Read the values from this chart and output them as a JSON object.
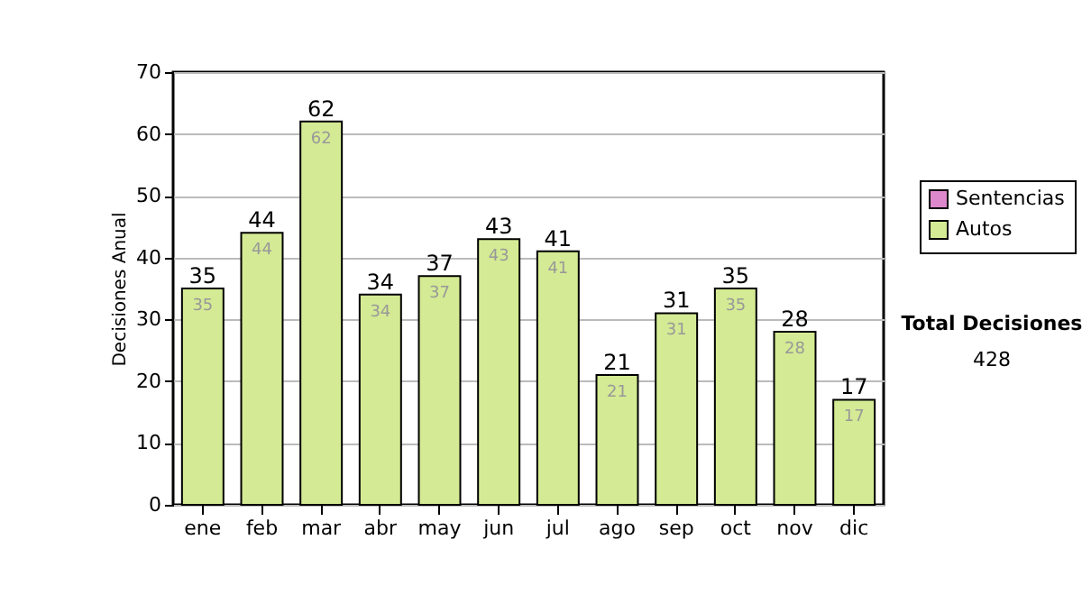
{
  "chart_data": {
    "type": "bar",
    "ylabel": "Decisiones Anual",
    "categories": [
      "ene",
      "feb",
      "mar",
      "abr",
      "may",
      "jun",
      "jul",
      "ago",
      "sep",
      "oct",
      "nov",
      "dic"
    ],
    "stacked": true,
    "series": [
      {
        "name": "Sentencias",
        "color": "#dd88cc",
        "values": [
          0,
          0,
          0,
          0,
          0,
          0,
          0,
          0,
          0,
          0,
          0,
          0
        ]
      },
      {
        "name": "Autos",
        "color": "#d4ea94",
        "values": [
          35,
          44,
          62,
          34,
          37,
          43,
          41,
          21,
          31,
          35,
          28,
          17
        ]
      }
    ],
    "totals": [
      "35",
      "44",
      "62",
      "34",
      "37",
      "43",
      "41",
      "21",
      "31",
      "35",
      "28",
      "17"
    ],
    "value_labels": [
      "35",
      "44",
      "62",
      "34",
      "37",
      "43",
      "41",
      "21",
      "31",
      "35",
      "28",
      "17"
    ],
    "ylim": [
      0,
      70
    ],
    "yticks": [
      0,
      10,
      20,
      30,
      40,
      50,
      60,
      70
    ],
    "grid": "y",
    "legend": "right",
    "annotations": [
      "Total Decisiones",
      "428"
    ]
  }
}
